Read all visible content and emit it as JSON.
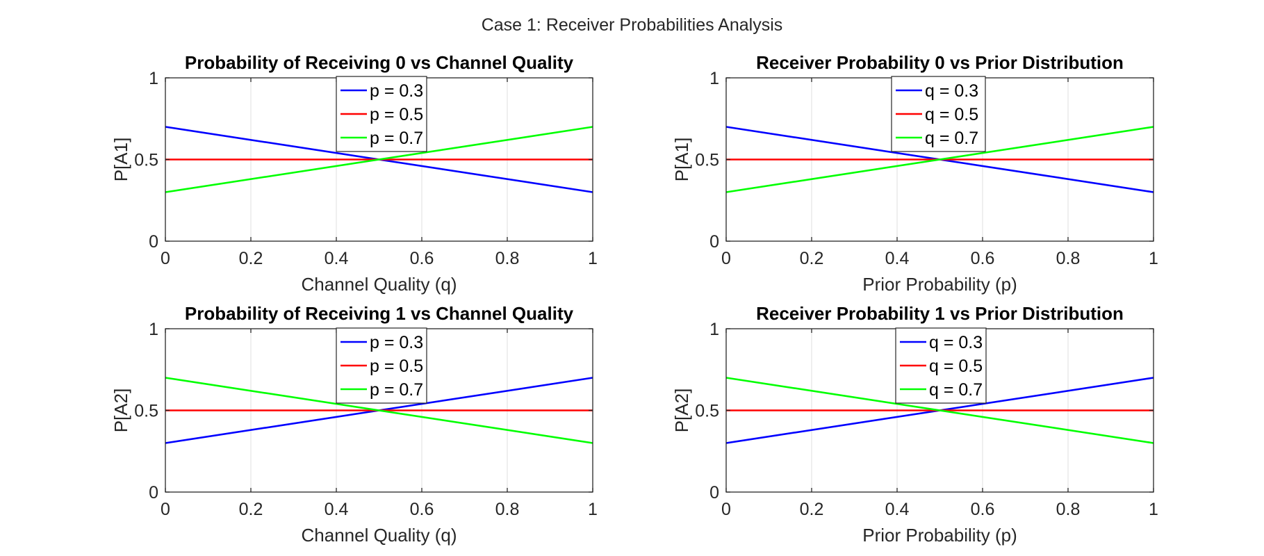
{
  "figure": {
    "title": "Case 1: Receiver Probabilities Analysis"
  },
  "chart_data": [
    {
      "type": "line",
      "title": "Probability of Receiving 0 vs Channel Quality",
      "xlabel": "Channel Quality (q)",
      "ylabel": "P[A1]",
      "xlim": [
        0,
        1
      ],
      "ylim": [
        0,
        1
      ],
      "xticks": [
        "0",
        "0.2",
        "0.4",
        "0.6",
        "0.8",
        "1"
      ],
      "yticks": [
        "0",
        "0.5",
        "1"
      ],
      "grid": "x-only",
      "legend": "top-center",
      "series": [
        {
          "name": "p = 0.3",
          "color": "#0000ff",
          "x": [
            0,
            1
          ],
          "y": [
            0.7,
            0.3
          ]
        },
        {
          "name": "p = 0.5",
          "color": "#ff0000",
          "x": [
            0,
            1
          ],
          "y": [
            0.5,
            0.5
          ]
        },
        {
          "name": "p = 0.7",
          "color": "#00ff00",
          "x": [
            0,
            1
          ],
          "y": [
            0.3,
            0.7
          ]
        }
      ]
    },
    {
      "type": "line",
      "title": "Receiver Probability 0 vs Prior Distribution",
      "xlabel": "Prior Probability (p)",
      "ylabel": "P[A1]",
      "xlim": [
        0,
        1
      ],
      "ylim": [
        0,
        1
      ],
      "xticks": [
        "0",
        "0.2",
        "0.4",
        "0.6",
        "0.8",
        "1"
      ],
      "yticks": [
        "0",
        "0.5",
        "1"
      ],
      "grid": "x-only",
      "legend": "top-center",
      "series": [
        {
          "name": "q = 0.3",
          "color": "#0000ff",
          "x": [
            0,
            1
          ],
          "y": [
            0.7,
            0.3
          ]
        },
        {
          "name": "q = 0.5",
          "color": "#ff0000",
          "x": [
            0,
            1
          ],
          "y": [
            0.5,
            0.5
          ]
        },
        {
          "name": "q = 0.7",
          "color": "#00ff00",
          "x": [
            0,
            1
          ],
          "y": [
            0.3,
            0.7
          ]
        }
      ]
    },
    {
      "type": "line",
      "title": "Probability of Receiving 1 vs Channel Quality",
      "xlabel": "Channel Quality (q)",
      "ylabel": "P[A2]",
      "xlim": [
        0,
        1
      ],
      "ylim": [
        0,
        1
      ],
      "xticks": [
        "0",
        "0.2",
        "0.4",
        "0.6",
        "0.8",
        "1"
      ],
      "yticks": [
        "0",
        "0.5",
        "1"
      ],
      "grid": "x-only",
      "legend": "top-center",
      "series": [
        {
          "name": "p = 0.3",
          "color": "#0000ff",
          "x": [
            0,
            1
          ],
          "y": [
            0.3,
            0.7
          ]
        },
        {
          "name": "p = 0.5",
          "color": "#ff0000",
          "x": [
            0,
            1
          ],
          "y": [
            0.5,
            0.5
          ]
        },
        {
          "name": "p = 0.7",
          "color": "#00ff00",
          "x": [
            0,
            1
          ],
          "y": [
            0.7,
            0.3
          ]
        }
      ]
    },
    {
      "type": "line",
      "title": "Receiver Probability 1 vs Prior Distribution",
      "xlabel": "Prior Probability (p)",
      "ylabel": "P[A2]",
      "xlim": [
        0,
        1
      ],
      "ylim": [
        0,
        1
      ],
      "xticks": [
        "0",
        "0.2",
        "0.4",
        "0.6",
        "0.8",
        "1"
      ],
      "yticks": [
        "0",
        "0.5",
        "1"
      ],
      "grid": "x-only",
      "legend": "top-center",
      "series": [
        {
          "name": "q = 0.3",
          "color": "#0000ff",
          "x": [
            0,
            1
          ],
          "y": [
            0.3,
            0.7
          ]
        },
        {
          "name": "q = 0.5",
          "color": "#ff0000",
          "x": [
            0,
            1
          ],
          "y": [
            0.5,
            0.5
          ]
        },
        {
          "name": "q = 0.7",
          "color": "#00ff00",
          "x": [
            0,
            1
          ],
          "y": [
            0.7,
            0.3
          ]
        }
      ]
    }
  ]
}
